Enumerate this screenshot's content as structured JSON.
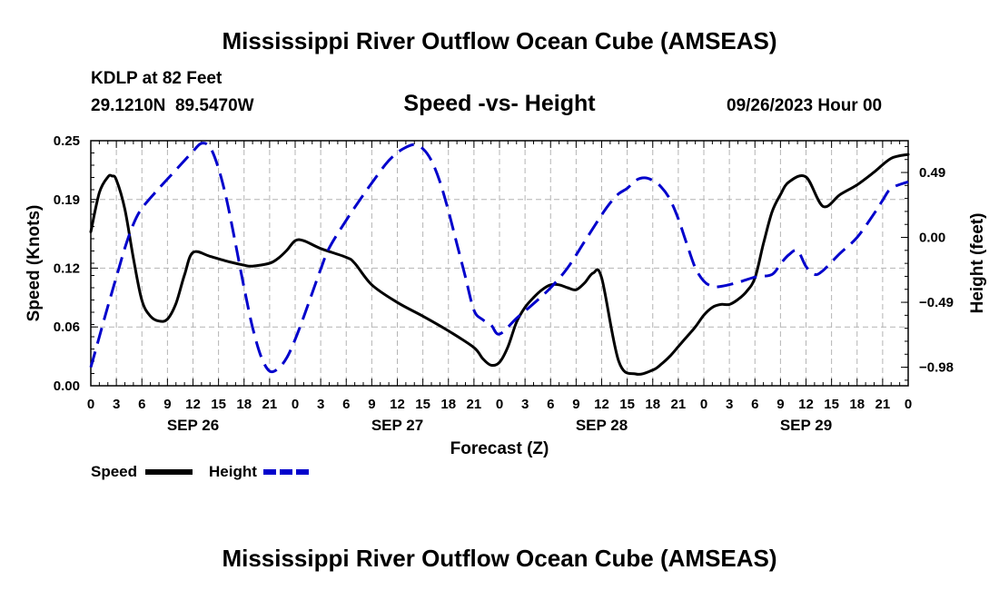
{
  "header": {
    "main_title": "Mississippi River Outflow Ocean Cube (AMSEAS)",
    "station": "KDLP at 82 Feet",
    "coords": "29.1210N  89.5470W",
    "chart_title": "Speed -vs- Height",
    "datetime": "09/26/2023 Hour 00"
  },
  "footer": {
    "repeat_title": "Mississippi River Outflow Ocean Cube (AMSEAS)"
  },
  "chart_data": {
    "type": "line",
    "title": "Speed -vs- Height",
    "xlabel": "Forecast (Z)",
    "ylabel": "Speed (Knots)",
    "y2label": "Height (feet)",
    "x_unit": "hours since 09/26/2023 00Z",
    "xlim": [
      0,
      96
    ],
    "ylim": [
      0,
      0.25
    ],
    "y2lim": [
      -1.12,
      0.73
    ],
    "x_ticks": [
      0,
      3,
      6,
      9,
      12,
      15,
      18,
      21,
      24,
      27,
      30,
      33,
      36,
      39,
      42,
      45,
      48,
      51,
      54,
      57,
      60,
      63,
      66,
      69,
      72,
      75,
      78,
      81,
      84,
      87,
      90,
      93,
      96
    ],
    "x_tick_labels": [
      "0",
      "3",
      "6",
      "9",
      "12",
      "15",
      "18",
      "21",
      "0",
      "3",
      "6",
      "9",
      "12",
      "15",
      "18",
      "21",
      "0",
      "3",
      "6",
      "9",
      "12",
      "15",
      "18",
      "21",
      "0",
      "3",
      "6",
      "9",
      "12",
      "15",
      "18",
      "21",
      "0"
    ],
    "date_labels": [
      {
        "hour": 12,
        "label": "SEP 26"
      },
      {
        "hour": 36,
        "label": "SEP 27"
      },
      {
        "hour": 60,
        "label": "SEP 28"
      },
      {
        "hour": 84,
        "label": "SEP 29"
      }
    ],
    "y_ticks": [
      0.0,
      0.06,
      0.12,
      0.19,
      0.25
    ],
    "y_tick_labels": [
      "0.00",
      "0.06",
      "0.12",
      "0.19",
      "0.25"
    ],
    "y2_ticks": [
      -0.98,
      -0.49,
      0.0,
      0.49
    ],
    "y2_tick_labels": [
      "−0.98",
      "−0.49",
      "0.00",
      "0.49"
    ],
    "grid": true,
    "legend": [
      {
        "name": "Speed",
        "color": "#000000",
        "style": "solid"
      },
      {
        "name": "Height",
        "color": "#0000cc",
        "style": "dashed"
      }
    ],
    "series": [
      {
        "name": "Speed",
        "axis": "left",
        "color": "#000000",
        "x": [
          0,
          1,
          2,
          2.5,
          3,
          4,
          5,
          6,
          7,
          8,
          9,
          10,
          11,
          12,
          14,
          16,
          18,
          19,
          21,
          22,
          23,
          24,
          25,
          27,
          30,
          31,
          33,
          36,
          39,
          42,
          45,
          46,
          47,
          48,
          49,
          50,
          51,
          52,
          53,
          54,
          55,
          56,
          57,
          58,
          59,
          60,
          62,
          64,
          66,
          67,
          68,
          69,
          70,
          71,
          72,
          73,
          74,
          75,
          76,
          77,
          78,
          79,
          80,
          81,
          82,
          84,
          86,
          88,
          90,
          92,
          94,
          96
        ],
        "y": [
          0.157,
          0.197,
          0.213,
          0.214,
          0.21,
          0.18,
          0.13,
          0.087,
          0.071,
          0.066,
          0.068,
          0.084,
          0.113,
          0.136,
          0.132,
          0.127,
          0.123,
          0.122,
          0.125,
          0.13,
          0.138,
          0.148,
          0.148,
          0.14,
          0.131,
          0.125,
          0.103,
          0.085,
          0.071,
          0.056,
          0.039,
          0.028,
          0.021,
          0.024,
          0.04,
          0.065,
          0.08,
          0.09,
          0.098,
          0.103,
          0.103,
          0.1,
          0.098,
          0.105,
          0.115,
          0.11,
          0.025,
          0.012,
          0.016,
          0.022,
          0.03,
          0.04,
          0.05,
          0.06,
          0.072,
          0.08,
          0.083,
          0.083,
          0.088,
          0.096,
          0.11,
          0.145,
          0.177,
          0.195,
          0.208,
          0.213,
          0.183,
          0.195,
          0.205,
          0.218,
          0.232,
          0.236
        ]
      },
      {
        "name": "Height",
        "axis": "right",
        "color": "#0000cc",
        "x": [
          0,
          1,
          2,
          3,
          4,
          5,
          6,
          8,
          10,
          11,
          12,
          13,
          14,
          15,
          16,
          17,
          18,
          19,
          20,
          21,
          22,
          23,
          24,
          25,
          26,
          27,
          28,
          30,
          32,
          34,
          35,
          36,
          37,
          38,
          39,
          40,
          41,
          42,
          43,
          44,
          45,
          46,
          47,
          48,
          50,
          52,
          54,
          56,
          58,
          60,
          61,
          62,
          63,
          64,
          65,
          66,
          67,
          68,
          69,
          70,
          71,
          72,
          73,
          74,
          76,
          78,
          80,
          81,
          82,
          83,
          84,
          85,
          86,
          88,
          90,
          92,
          93,
          94,
          96
        ],
        "y": [
          -0.98,
          -0.75,
          -0.52,
          -0.3,
          -0.08,
          0.1,
          0.22,
          0.37,
          0.51,
          0.58,
          0.65,
          0.71,
          0.68,
          0.52,
          0.27,
          -0.05,
          -0.38,
          -0.68,
          -0.9,
          -1.01,
          -0.99,
          -0.91,
          -0.77,
          -0.6,
          -0.42,
          -0.24,
          -0.08,
          0.13,
          0.32,
          0.5,
          0.58,
          0.64,
          0.68,
          0.7,
          0.67,
          0.58,
          0.42,
          0.2,
          -0.05,
          -0.3,
          -0.55,
          -0.62,
          -0.66,
          -0.73,
          -0.61,
          -0.5,
          -0.38,
          -0.23,
          -0.03,
          0.17,
          0.26,
          0.33,
          0.37,
          0.43,
          0.45,
          0.43,
          0.38,
          0.29,
          0.14,
          -0.05,
          -0.23,
          -0.33,
          -0.37,
          -0.37,
          -0.34,
          -0.3,
          -0.28,
          -0.2,
          -0.13,
          -0.1,
          -0.22,
          -0.28,
          -0.25,
          -0.12,
          0.0,
          0.18,
          0.28,
          0.37,
          0.42
        ]
      }
    ]
  }
}
